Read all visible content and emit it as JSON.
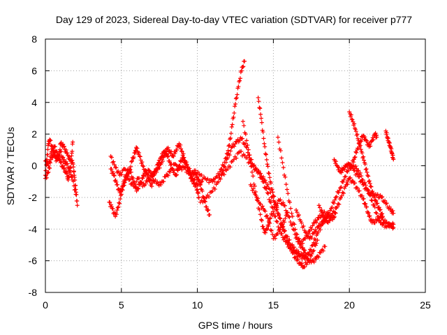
{
  "chart_data": {
    "type": "scatter",
    "title": "Day 129 of 2023, Sidereal Day-to-day VTEC variation (SDTVAR) for receiver p777",
    "xlabel": "GPS time / hours",
    "ylabel": "SDTVAR / TECUs",
    "xlim": [
      0,
      25
    ],
    "ylim": [
      -8,
      8
    ],
    "xticks": [
      0,
      5,
      10,
      15,
      20,
      25
    ],
    "yticks": [
      -8,
      -6,
      -4,
      -2,
      0,
      2,
      4,
      6,
      8
    ],
    "grid": true,
    "marker": "+",
    "series_color": "#ff0000",
    "traces": [
      [
        [
          0.0,
          -0.6
        ],
        [
          0.1,
          0.4
        ],
        [
          0.2,
          1.4
        ],
        [
          0.3,
          1.6
        ],
        [
          0.5,
          1.0
        ],
        [
          0.7,
          0.3
        ],
        [
          0.9,
          0.6
        ],
        [
          1.0,
          1.4
        ],
        [
          1.2,
          1.2
        ],
        [
          1.4,
          0.8
        ],
        [
          1.6,
          0.4
        ],
        [
          1.8,
          0.2
        ],
        [
          1.9,
          -0.6
        ],
        [
          2.0,
          -1.5
        ],
        [
          2.1,
          -2.5
        ]
      ],
      [
        [
          0.0,
          0.3
        ],
        [
          0.2,
          0.0
        ],
        [
          0.4,
          0.9
        ],
        [
          0.6,
          1.2
        ],
        [
          0.8,
          0.7
        ],
        [
          1.0,
          0.2
        ],
        [
          1.2,
          -0.2
        ],
        [
          1.4,
          -0.5
        ],
        [
          1.5,
          -0.9
        ],
        [
          1.6,
          -0.4
        ],
        [
          1.7,
          0.3
        ],
        [
          1.8,
          1.5
        ]
      ],
      [
        [
          0.0,
          -0.8
        ],
        [
          0.2,
          -0.4
        ],
        [
          0.4,
          0.5
        ],
        [
          0.6,
          0.8
        ],
        [
          0.8,
          0.4
        ],
        [
          1.0,
          0.9
        ],
        [
          1.2,
          0.3
        ],
        [
          1.4,
          0.1
        ],
        [
          1.6,
          -0.3
        ],
        [
          1.8,
          -0.9
        ],
        [
          2.0,
          -1.8
        ]
      ],
      [
        [
          4.3,
          -0.2
        ],
        [
          4.5,
          -0.6
        ],
        [
          4.7,
          -1.2
        ],
        [
          4.9,
          -1.7
        ],
        [
          5.1,
          -1.3
        ],
        [
          5.3,
          -0.9
        ],
        [
          5.5,
          -0.5
        ],
        [
          5.7,
          0.3
        ],
        [
          5.9,
          0.8
        ],
        [
          6.0,
          1.1
        ],
        [
          6.2,
          0.6
        ],
        [
          6.4,
          0.0
        ],
        [
          6.6,
          -0.6
        ],
        [
          6.8,
          -0.3
        ],
        [
          7.0,
          -0.6
        ],
        [
          7.2,
          -0.4
        ],
        [
          7.4,
          -0.2
        ],
        [
          7.6,
          0.1
        ],
        [
          7.8,
          0.6
        ],
        [
          8.0,
          1.1
        ],
        [
          8.2,
          0.9
        ],
        [
          8.4,
          0.6
        ],
        [
          8.6,
          1.0
        ],
        [
          8.8,
          1.4
        ],
        [
          9.0,
          0.9
        ],
        [
          9.2,
          0.3
        ],
        [
          9.4,
          -0.1
        ],
        [
          9.6,
          -0.5
        ],
        [
          9.8,
          -0.4
        ],
        [
          10.0,
          -0.7
        ],
        [
          10.2,
          -1.2
        ],
        [
          10.4,
          -2.0
        ],
        [
          10.6,
          -2.6
        ],
        [
          10.8,
          -3.1
        ]
      ],
      [
        [
          4.2,
          -2.3
        ],
        [
          4.4,
          -2.7
        ],
        [
          4.6,
          -3.2
        ],
        [
          4.8,
          -2.6
        ],
        [
          5.0,
          -1.8
        ],
        [
          5.2,
          -0.9
        ],
        [
          5.4,
          -0.3
        ],
        [
          5.6,
          -0.4
        ],
        [
          5.8,
          -1.0
        ],
        [
          6.0,
          -1.6
        ],
        [
          6.2,
          -1.2
        ],
        [
          6.4,
          -0.8
        ],
        [
          6.6,
          -0.3
        ],
        [
          6.8,
          -0.8
        ],
        [
          7.0,
          -1.3
        ],
        [
          7.2,
          -0.5
        ],
        [
          7.4,
          0.1
        ],
        [
          7.6,
          0.5
        ],
        [
          7.8,
          0.9
        ],
        [
          8.0,
          0.7
        ],
        [
          8.2,
          0.2
        ],
        [
          8.4,
          -0.3
        ],
        [
          8.6,
          -0.6
        ],
        [
          8.8,
          0.0
        ],
        [
          9.0,
          0.5
        ],
        [
          9.2,
          0.2
        ],
        [
          9.4,
          -0.3
        ],
        [
          9.6,
          -0.8
        ],
        [
          9.8,
          -1.1
        ],
        [
          10.0,
          -1.5
        ],
        [
          10.1,
          -2.0
        ]
      ],
      [
        [
          4.3,
          0.6
        ],
        [
          4.6,
          -0.1
        ],
        [
          4.9,
          -0.6
        ],
        [
          5.2,
          -0.2
        ],
        [
          5.5,
          -0.9
        ],
        [
          5.8,
          -1.3
        ],
        [
          6.1,
          -0.8
        ],
        [
          6.4,
          -1.3
        ],
        [
          6.7,
          -1.0
        ],
        [
          7.0,
          -0.7
        ],
        [
          7.3,
          -1.1
        ],
        [
          7.6,
          -1.2
        ],
        [
          7.9,
          -0.7
        ],
        [
          8.2,
          -0.4
        ],
        [
          8.5,
          0.1
        ],
        [
          8.8,
          -0.2
        ],
        [
          9.1,
          -0.1
        ],
        [
          9.4,
          -0.4
        ],
        [
          9.7,
          -0.8
        ],
        [
          10.0,
          -1.2
        ],
        [
          10.3,
          -1.0
        ]
      ],
      [
        [
          9.8,
          -0.3
        ],
        [
          10.2,
          -0.6
        ],
        [
          10.6,
          -0.9
        ],
        [
          11.0,
          -1.0
        ],
        [
          11.3,
          -0.7
        ],
        [
          11.6,
          -0.2
        ],
        [
          11.9,
          0.5
        ],
        [
          12.1,
          1.3
        ],
        [
          12.3,
          2.6
        ],
        [
          12.5,
          3.9
        ],
        [
          12.7,
          5.0
        ],
        [
          12.9,
          6.0
        ],
        [
          13.1,
          6.6
        ]
      ],
      [
        [
          10.2,
          -2.3
        ],
        [
          10.6,
          -2.0
        ],
        [
          11.0,
          -1.6
        ],
        [
          11.4,
          -1.0
        ],
        [
          11.7,
          -0.3
        ],
        [
          12.0,
          0.5
        ],
        [
          12.3,
          1.2
        ],
        [
          12.6,
          1.5
        ],
        [
          12.9,
          1.7
        ],
        [
          13.2,
          1.2
        ],
        [
          13.5,
          0.4
        ],
        [
          13.8,
          -0.2
        ],
        [
          14.1,
          -0.5
        ],
        [
          14.4,
          -0.9
        ],
        [
          14.7,
          -1.4
        ],
        [
          15.0,
          -2.2
        ],
        [
          15.3,
          -3.0
        ],
        [
          15.6,
          -3.9
        ],
        [
          15.9,
          -4.7
        ],
        [
          16.2,
          -5.4
        ],
        [
          16.5,
          -5.9
        ],
        [
          16.8,
          -6.2
        ],
        [
          17.0,
          -6.4
        ],
        [
          17.3,
          -6.0
        ],
        [
          17.6,
          -5.4
        ],
        [
          17.9,
          -4.7
        ]
      ],
      [
        [
          11.6,
          -0.6
        ],
        [
          12.0,
          -0.2
        ],
        [
          12.4,
          0.4
        ],
        [
          12.8,
          0.9
        ],
        [
          13.2,
          0.5
        ],
        [
          13.6,
          0.0
        ],
        [
          14.0,
          -0.4
        ],
        [
          14.3,
          -1.0
        ],
        [
          14.6,
          -1.7
        ],
        [
          14.9,
          -2.6
        ],
        [
          15.2,
          -3.5
        ],
        [
          15.5,
          -4.3
        ],
        [
          15.8,
          -4.8
        ],
        [
          16.1,
          -5.2
        ],
        [
          16.4,
          -5.5
        ],
        [
          16.7,
          -5.7
        ],
        [
          17.0,
          -5.8
        ],
        [
          17.3,
          -5.6
        ],
        [
          17.6,
          -5.0
        ],
        [
          17.9,
          -4.3
        ],
        [
          18.2,
          -3.7
        ],
        [
          18.5,
          -3.3
        ],
        [
          18.8,
          -2.7
        ],
        [
          19.1,
          -2.0
        ],
        [
          19.4,
          -1.4
        ],
        [
          19.7,
          -0.7
        ],
        [
          20.0,
          -0.1
        ],
        [
          20.3,
          0.0
        ],
        [
          20.6,
          -0.3
        ],
        [
          20.9,
          -0.9
        ],
        [
          21.2,
          -1.5
        ],
        [
          21.5,
          -2.2
        ],
        [
          21.8,
          -3.0
        ],
        [
          22.1,
          -3.6
        ],
        [
          22.4,
          -3.8
        ],
        [
          22.7,
          -3.7
        ],
        [
          22.9,
          -3.9
        ]
      ],
      [
        [
          13.0,
          2.8
        ],
        [
          13.3,
          1.3
        ],
        [
          13.6,
          -0.4
        ],
        [
          13.9,
          -2.0
        ],
        [
          14.2,
          -3.4
        ],
        [
          14.4,
          -4.2
        ],
        [
          14.6,
          -4.0
        ],
        [
          14.8,
          -3.3
        ],
        [
          15.1,
          -2.6
        ],
        [
          15.4,
          -2.2
        ],
        [
          15.7,
          -2.5
        ],
        [
          16.0,
          -3.2
        ],
        [
          16.3,
          -4.0
        ],
        [
          16.6,
          -4.8
        ],
        [
          16.9,
          -5.2
        ],
        [
          17.1,
          -5.5
        ]
      ],
      [
        [
          14.0,
          4.3
        ],
        [
          14.2,
          3.0
        ],
        [
          14.4,
          1.4
        ],
        [
          14.6,
          0.1
        ],
        [
          14.8,
          -1.0
        ],
        [
          15.0,
          -1.9
        ],
        [
          15.2,
          -2.6
        ],
        [
          15.4,
          -3.3
        ],
        [
          15.7,
          -4.1
        ],
        [
          16.0,
          -4.7
        ],
        [
          16.3,
          -5.2
        ],
        [
          16.6,
          -5.5
        ],
        [
          16.9,
          -5.7
        ],
        [
          17.2,
          -5.9
        ],
        [
          17.5,
          -6.1
        ],
        [
          17.8,
          -5.9
        ],
        [
          18.1,
          -5.5
        ],
        [
          18.4,
          -5.1
        ]
      ],
      [
        [
          13.5,
          -1.2
        ],
        [
          13.8,
          -1.8
        ],
        [
          14.1,
          -2.4
        ],
        [
          14.4,
          -2.8
        ],
        [
          14.7,
          -3.5
        ],
        [
          15.0,
          -4.6
        ],
        [
          15.3,
          -4.3
        ],
        [
          15.6,
          -3.7
        ],
        [
          15.9,
          -3.1
        ]
      ],
      [
        [
          15.3,
          1.8
        ],
        [
          15.6,
          0.2
        ],
        [
          15.9,
          -1.5
        ],
        [
          16.2,
          -3.0
        ],
        [
          16.5,
          -4.3
        ],
        [
          16.8,
          -4.9
        ],
        [
          17.1,
          -4.6
        ],
        [
          17.4,
          -4.1
        ],
        [
          17.7,
          -3.6
        ],
        [
          18.0,
          -3.3
        ],
        [
          18.3,
          -3.0
        ],
        [
          18.6,
          -3.1
        ],
        [
          18.9,
          -3.4
        ],
        [
          19.1,
          -3.0
        ]
      ],
      [
        [
          16.5,
          -2.8
        ],
        [
          16.8,
          -3.5
        ],
        [
          17.1,
          -4.2
        ],
        [
          17.4,
          -4.6
        ],
        [
          17.7,
          -4.2
        ],
        [
          18.0,
          -3.8
        ],
        [
          18.3,
          -3.5
        ],
        [
          18.6,
          -3.2
        ]
      ],
      [
        [
          18.0,
          -2.5
        ],
        [
          18.3,
          -3.2
        ],
        [
          18.6,
          -3.6
        ],
        [
          18.9,
          -3.0
        ],
        [
          19.2,
          -2.6
        ],
        [
          19.5,
          -1.9
        ],
        [
          19.8,
          -1.2
        ],
        [
          20.0,
          -0.8
        ],
        [
          20.3,
          -1.1
        ],
        [
          20.6,
          -1.6
        ],
        [
          20.9,
          -2.1
        ],
        [
          21.1,
          -2.6
        ],
        [
          21.3,
          -3.2
        ],
        [
          21.5,
          -3.6
        ],
        [
          21.8,
          -3.5
        ],
        [
          22.1,
          -3.3
        ],
        [
          22.4,
          -3.6
        ],
        [
          22.7,
          -3.8
        ],
        [
          22.9,
          -3.7
        ]
      ],
      [
        [
          19.0,
          0.4
        ],
        [
          19.2,
          0.0
        ],
        [
          19.4,
          -0.4
        ],
        [
          19.6,
          -0.2
        ],
        [
          19.8,
          0.0
        ],
        [
          20.0,
          0.1
        ],
        [
          20.3,
          -0.3
        ],
        [
          20.6,
          -0.7
        ],
        [
          20.9,
          -1.2
        ],
        [
          21.2,
          -1.6
        ],
        [
          21.5,
          -1.9
        ],
        [
          21.8,
          -1.9
        ],
        [
          22.1,
          -2.0
        ],
        [
          22.4,
          -2.4
        ],
        [
          22.7,
          -2.8
        ],
        [
          22.9,
          -3.0
        ]
      ],
      [
        [
          20.0,
          3.4
        ],
        [
          20.2,
          2.9
        ],
        [
          20.4,
          2.3
        ],
        [
          20.6,
          1.6
        ],
        [
          20.8,
          0.9
        ],
        [
          21.0,
          0.2
        ],
        [
          21.2,
          -0.6
        ],
        [
          21.4,
          -1.3
        ],
        [
          21.6,
          -1.9
        ],
        [
          21.8,
          -2.4
        ],
        [
          22.0,
          -2.8
        ],
        [
          22.2,
          -3.2
        ]
      ],
      [
        [
          20.1,
          -0.1
        ],
        [
          20.3,
          0.4
        ],
        [
          20.5,
          1.0
        ],
        [
          20.7,
          1.5
        ],
        [
          20.9,
          1.9
        ],
        [
          21.1,
          1.6
        ],
        [
          21.3,
          1.2
        ],
        [
          21.5,
          1.6
        ],
        [
          21.7,
          2.0
        ],
        [
          21.8,
          1.8
        ]
      ],
      [
        [
          22.4,
          2.2
        ],
        [
          22.5,
          1.8
        ],
        [
          22.6,
          1.5
        ],
        [
          22.7,
          1.2
        ],
        [
          22.8,
          0.8
        ],
        [
          22.9,
          0.4
        ]
      ]
    ]
  }
}
